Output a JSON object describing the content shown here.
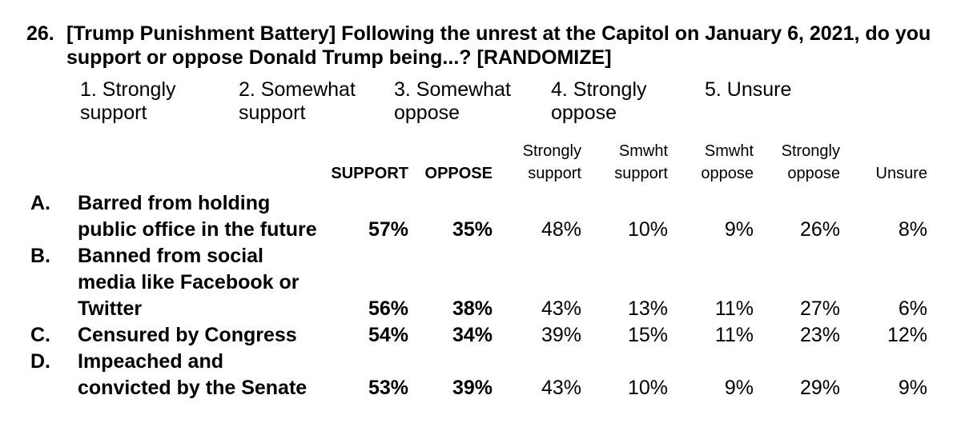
{
  "question": {
    "number": "26.",
    "text": "[Trump Punishment Battery] Following the unrest at the Capitol on January 6, 2021, do you\nsupport or oppose Donald Trump being...? [RANDOMIZE]"
  },
  "options": [
    "1. Strongly\nsupport",
    "2. Somewhat\nsupport",
    "3. Somewhat\noppose",
    "4. Strongly\noppose",
    "5. Unsure"
  ],
  "table": {
    "headers": {
      "support": "SUPPORT",
      "oppose": "OPPOSE",
      "strongly_support": "Strongly\nsupport",
      "smwht_support": "Smwht\nsupport",
      "smwht_oppose": "Smwht\noppose",
      "strongly_oppose": "Strongly\noppose",
      "unsure": "Unsure"
    },
    "rows": [
      {
        "letter": "A.",
        "label": "Barred from holding\npublic office in the future",
        "support": "57%",
        "oppose": "35%",
        "strongly_support": "48%",
        "smwht_support": "10%",
        "smwht_oppose": "9%",
        "strongly_oppose": "26%",
        "unsure": "8%"
      },
      {
        "letter": "B.",
        "label": "Banned from social\nmedia like Facebook or\nTwitter",
        "support": "56%",
        "oppose": "38%",
        "strongly_support": "43%",
        "smwht_support": "13%",
        "smwht_oppose": "11%",
        "strongly_oppose": "27%",
        "unsure": "6%"
      },
      {
        "letter": "C.",
        "label": "Censured by Congress",
        "support": "54%",
        "oppose": "34%",
        "strongly_support": "39%",
        "smwht_support": "15%",
        "smwht_oppose": "11%",
        "strongly_oppose": "23%",
        "unsure": "12%"
      },
      {
        "letter": "D.",
        "label": "Impeached and\nconvicted by the Senate",
        "support": "53%",
        "oppose": "39%",
        "strongly_support": "43%",
        "smwht_support": "10%",
        "smwht_oppose": "9%",
        "strongly_oppose": "29%",
        "unsure": "9%"
      }
    ]
  }
}
